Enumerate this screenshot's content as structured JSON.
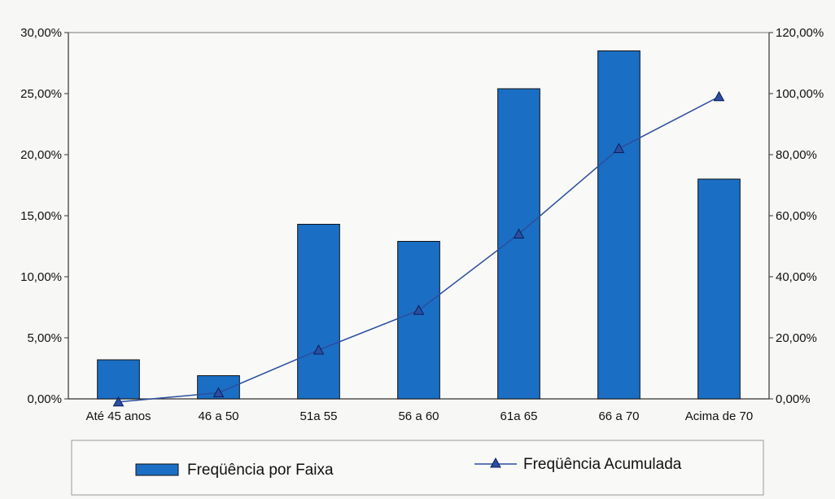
{
  "chart_data": {
    "type": "bar",
    "categories": [
      "Até 45 anos",
      "46 a 50",
      "51a 55",
      "56 a 60",
      "61a 65",
      "66 a 70",
      "Acima de 70"
    ],
    "series": [
      {
        "name": "Freqüência por Faixa",
        "type": "bar",
        "axis": "left",
        "color": "#1a6fc4",
        "values": [
          3.2,
          1.9,
          14.3,
          12.9,
          25.4,
          28.5,
          18.0
        ]
      },
      {
        "name": "Freqüência Acumulada",
        "type": "line",
        "axis": "right",
        "color": "#2a4ea0",
        "marker": "triangle",
        "values": [
          -1.0,
          2.0,
          16.0,
          29.0,
          54.0,
          82.0,
          99.0
        ]
      }
    ],
    "ylim_left": [
      0,
      30
    ],
    "ylim_right": [
      0,
      120
    ],
    "yticks_left": [
      "0,00%",
      "5,00%",
      "10,00%",
      "15,00%",
      "20,00%",
      "25,00%",
      "30,00%"
    ],
    "yticks_right": [
      "0,00%",
      "20,00%",
      "40,00%",
      "60,00%",
      "80,00%",
      "100,00%",
      "120,00%"
    ],
    "grid": false,
    "legend_position": "bottom"
  }
}
